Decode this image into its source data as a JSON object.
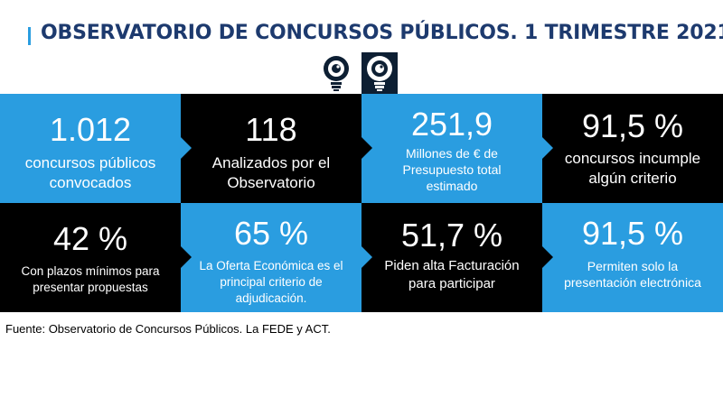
{
  "title": "OBSERVATORIO DE CONCURSOS PÚBLICOS. 1 TRIMESTRE 2021",
  "logo_text": "OBSERVATORIO DE CONCURSOS PÚBLICOS",
  "colors": {
    "blue": "#2a9de0",
    "black": "#000000",
    "title": "#1d3a6e"
  },
  "tiles": [
    {
      "value": "1.012",
      "label_line1": "concursos públicos",
      "label_line2": "convocados",
      "label_line3": ""
    },
    {
      "value": "118",
      "label_line1": "Analizados por el",
      "label_line2": "Observatorio",
      "label_line3": ""
    },
    {
      "value": "251,9",
      "label_line1": "Millones de € de",
      "label_line2": "Presupuesto total",
      "label_line3": "estimado"
    },
    {
      "value": "91,5 %",
      "label_line1": "concursos incumple",
      "label_line2": "algún criterio",
      "label_line3": ""
    },
    {
      "value": "42 %",
      "label_line1": "Con plazos mínimos para",
      "label_line2": "presentar propuestas",
      "label_line3": ""
    },
    {
      "value": "65 %",
      "label_line1": "La Oferta Económica es el",
      "label_line2": "principal criterio de",
      "label_line3": "adjudicación."
    },
    {
      "value": "51,7 %",
      "label_line1": "Piden alta Facturación",
      "label_line2": "para participar",
      "label_line3": ""
    },
    {
      "value": "91,5 %",
      "label_line1": "Permiten solo la",
      "label_line2": "presentación electrónica",
      "label_line3": ""
    }
  ],
  "source": "Fuente: Observatorio de Concursos Públicos. La FEDE y ACT."
}
